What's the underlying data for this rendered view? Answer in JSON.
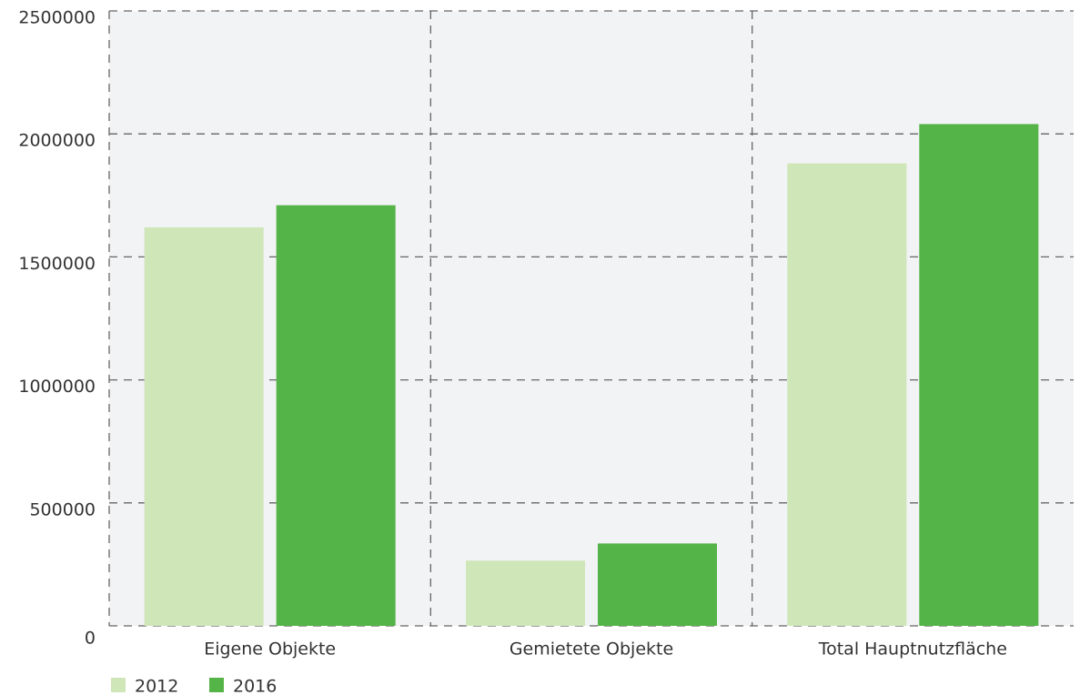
{
  "chart_data": {
    "type": "bar",
    "categories": [
      "Eigene Objekte",
      "Gemietete Objekte",
      "Total Hauptnutzfläche"
    ],
    "series": [
      {
        "name": "2012",
        "color": "#cfe6b8",
        "values": [
          1620000,
          265000,
          1880000
        ]
      },
      {
        "name": "2016",
        "color": "#55b447",
        "values": [
          1710000,
          335000,
          2040000
        ]
      }
    ],
    "ylim": [
      0,
      2500000
    ],
    "yticks": [
      0,
      500000,
      1000000,
      1500000,
      2000000,
      2500000
    ],
    "grid": true
  }
}
